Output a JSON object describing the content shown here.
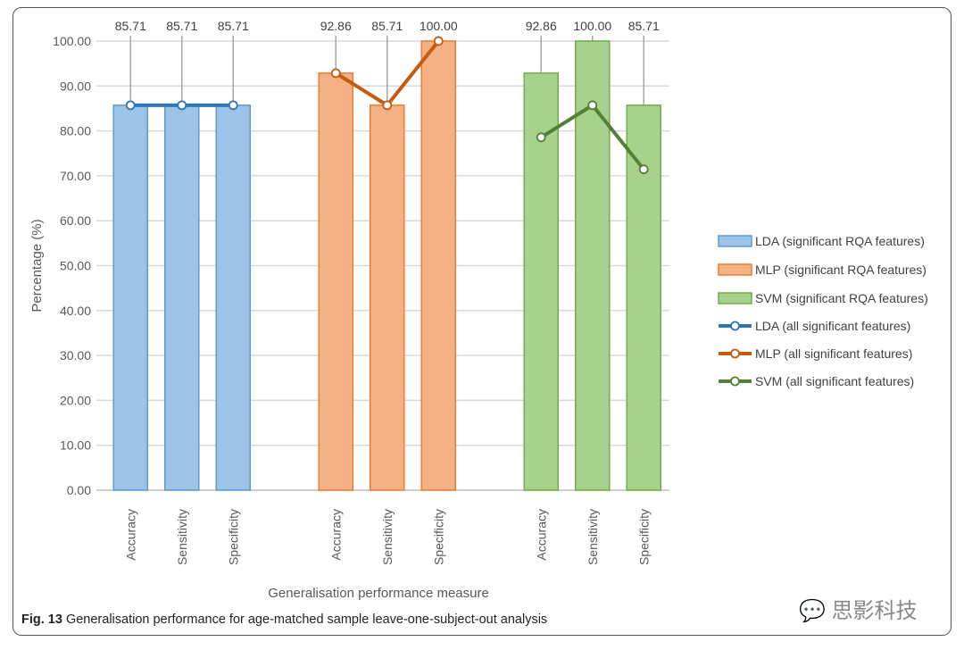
{
  "chart_data": {
    "type": "bar",
    "title": "",
    "xlabel": "Generalisation performance measure",
    "ylabel": "Percentage (%)",
    "ylim": [
      0,
      100
    ],
    "yticks": [
      "0.00",
      "10.00",
      "20.00",
      "30.00",
      "40.00",
      "50.00",
      "60.00",
      "70.00",
      "80.00",
      "90.00",
      "100.00"
    ],
    "grid": true,
    "legend_position": "right",
    "categories": [
      "Accuracy",
      "Sensitivity",
      "Specificity"
    ],
    "groups": [
      {
        "name": "LDA",
        "bar_series": "LDA (significant RQA features)",
        "line_series": "LDA (all significant features)",
        "bar_values": [
          85.71,
          85.71,
          85.71
        ],
        "line_values": [
          85.71,
          85.71,
          85.71
        ],
        "labels": [
          "85.71",
          "85.71",
          "85.71"
        ],
        "bar_fill": "#9dc3e6",
        "bar_stroke": "#5b9bd5",
        "line_color": "#2e75b6"
      },
      {
        "name": "MLP",
        "bar_series": "MLP (significant RQA features)",
        "line_series": "MLP (all significant features)",
        "bar_values": [
          92.86,
          85.71,
          100.0
        ],
        "line_values": [
          92.86,
          85.71,
          100.0
        ],
        "labels": [
          "92.86",
          "85.71",
          "100.00"
        ],
        "bar_fill": "#f4b183",
        "bar_stroke": "#ed7d31",
        "line_color": "#c55a11"
      },
      {
        "name": "SVM",
        "bar_series": "SVM (significant RQA features)",
        "line_series": "SVM (all significant features)",
        "bar_values": [
          92.86,
          100.0,
          85.71
        ],
        "line_values": [
          78.57,
          85.71,
          71.43
        ],
        "labels": [
          "92.86",
          "100.00",
          "85.71"
        ],
        "bar_fill": "#a9d18e",
        "bar_stroke": "#70ad47",
        "line_color": "#548235"
      }
    ]
  },
  "caption": {
    "prefix": "Fig. 13",
    "text": " Generalisation performance for age-matched sample leave-one-subject-out analysis"
  },
  "watermark": "思影科技"
}
